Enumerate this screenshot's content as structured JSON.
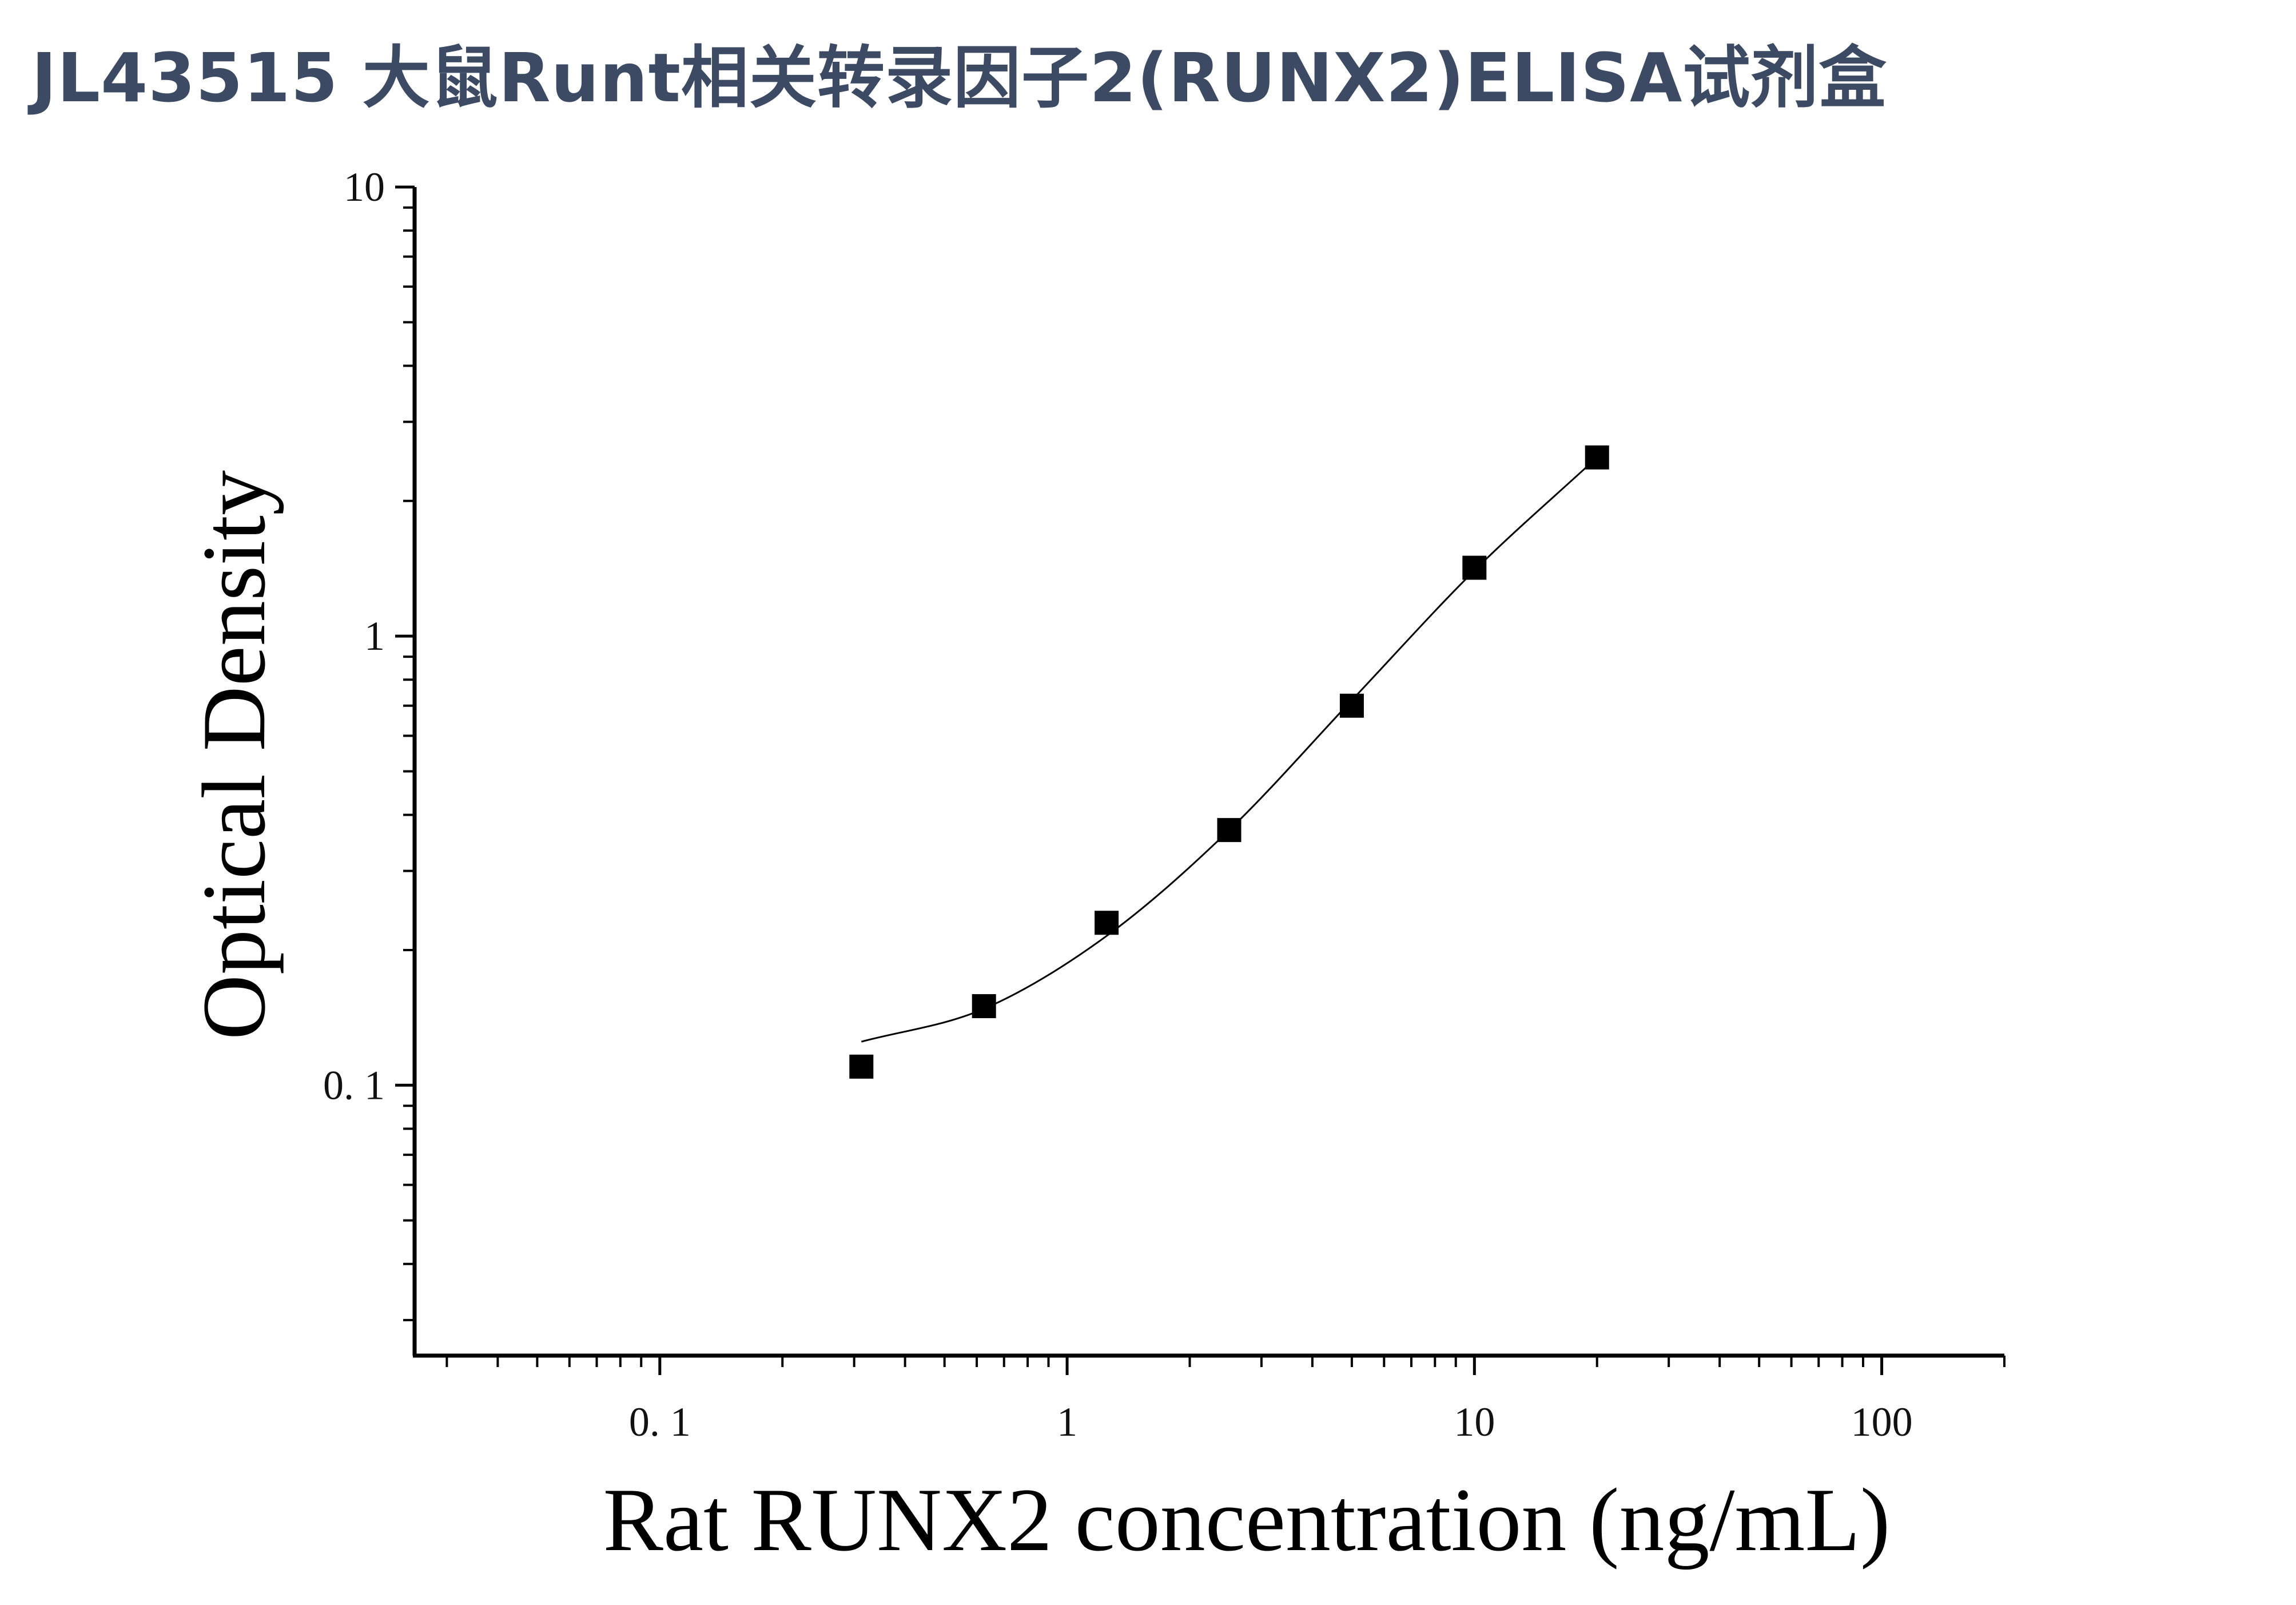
{
  "title": "JL43515 大鼠Runt相关转录因子2(RUNX2)ELISA试剂盒",
  "chart_data": {
    "type": "scatter",
    "title": "JL43515 大鼠Runt相关转录因子2(RUNX2)ELISA试剂盒",
    "xlabel": "Rat RUNX2 concentration (ng/mL)",
    "ylabel": "Optical Density",
    "x_scale": "log",
    "y_scale": "log",
    "xlim": [
      0.025,
      200
    ],
    "ylim": [
      0.025,
      10
    ],
    "x_ticks": [
      {
        "value": 0.1,
        "label": "0. 1"
      },
      {
        "value": 1,
        "label": "1"
      },
      {
        "value": 10,
        "label": "10"
      },
      {
        "value": 100,
        "label": "100"
      }
    ],
    "y_ticks": [
      {
        "value": 0.1,
        "label": "0. 1"
      },
      {
        "value": 1,
        "label": "1"
      },
      {
        "value": 10,
        "label": "10"
      }
    ],
    "grid": false,
    "marker": "square",
    "color": "#000000",
    "points": [
      {
        "x": 0.3125,
        "y": 0.11
      },
      {
        "x": 0.625,
        "y": 0.15
      },
      {
        "x": 1.25,
        "y": 0.23
      },
      {
        "x": 2.5,
        "y": 0.37
      },
      {
        "x": 5,
        "y": 0.7
      },
      {
        "x": 10,
        "y": 1.42
      },
      {
        "x": 20,
        "y": 2.5
      }
    ],
    "fit_curve": {
      "type": "four-parameter logistic",
      "points": [
        {
          "x": 0.3125,
          "y": 0.125
        },
        {
          "x": 0.625,
          "y": 0.148
        },
        {
          "x": 1.25,
          "y": 0.215
        },
        {
          "x": 2.5,
          "y": 0.37
        },
        {
          "x": 5,
          "y": 0.72
        },
        {
          "x": 10,
          "y": 1.4
        },
        {
          "x": 20,
          "y": 2.5
        }
      ]
    }
  }
}
